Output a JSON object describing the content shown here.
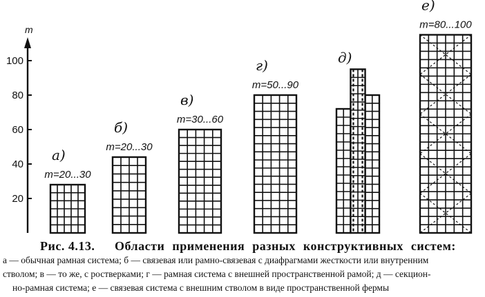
{
  "axis": {
    "unit_label": "m",
    "ticks": [
      "20",
      "40",
      "60",
      "80",
      "100"
    ],
    "tick_values": [
      20,
      40,
      60,
      80,
      100
    ],
    "range_m": [
      0,
      112
    ]
  },
  "buildings": [
    {
      "letter": "а)",
      "range": "m=20...30",
      "height_m": 28,
      "system": "frame"
    },
    {
      "letter": "б)",
      "range": "m=20...30",
      "height_m": 44,
      "system": "frame-braced"
    },
    {
      "letter": "в)",
      "range": "m=30...60",
      "height_m": 60,
      "system": "frame-outriggers"
    },
    {
      "letter": "г)",
      "range": "m=50...90",
      "height_m": 80,
      "system": "external-spatial-frame"
    },
    {
      "letter": "д)",
      "range": "",
      "height_m": 95,
      "system": "sectional-frame",
      "sections_m": [
        72,
        95,
        80
      ]
    },
    {
      "letter": "е)",
      "range": "m=80...100",
      "height_m": 115,
      "system": "external-truss-tube"
    }
  ],
  "caption": {
    "figure_number": "Рис. 4.13.",
    "title": "Области применения разных конструктивных систем:",
    "lines": [
      "а — обычная рамная система;  б — связевая или рамно-связевая с диафрагмами жесткости или внутренним",
      "стволом; в — то же, с ростверками; г — рамная система с внешней пространственной рамой; д — секцион-",
      "но-рамная система; е — связевая система с внешним стволом в виде пространственной фермы"
    ]
  }
}
